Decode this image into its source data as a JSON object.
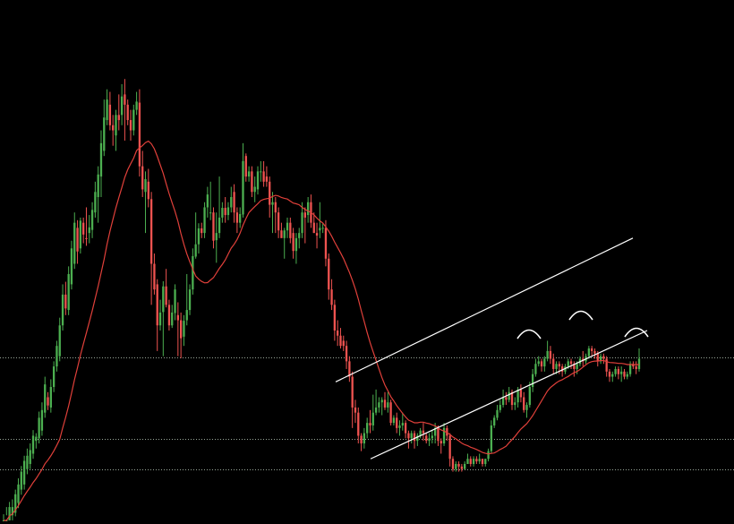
{
  "chart_data": {
    "type": "candlestick",
    "ylim": [
      0,
      100
    ],
    "colors": {
      "background": "#000000",
      "bull": "#4caf50",
      "bear": "#ef5350",
      "moving_average": "#e0403a",
      "channel": "#ffffff",
      "levels": "#9aa89a"
    },
    "horizontal_levels": [
      31.8,
      15.8,
      10.0
    ],
    "candles": [
      [
        0.0,
        0.0,
        0.0,
        1.2
      ],
      [
        0.0,
        0.0,
        1.0,
        2.6
      ],
      [
        0.0,
        2.6,
        0.0,
        3.6
      ],
      [
        1.0,
        2.6,
        0.0,
        4.1
      ],
      [
        1.5,
        5.1,
        0.8,
        6.0
      ],
      [
        3.4,
        7.0,
        2.4,
        8.2
      ],
      [
        6.0,
        9.5,
        5.0,
        10.6
      ],
      [
        7.0,
        11.6,
        6.0,
        12.6
      ],
      [
        10.0,
        12.6,
        9.0,
        14.0
      ],
      [
        11.0,
        13.7,
        10.0,
        15.0
      ],
      [
        13.0,
        16.5,
        12.0,
        17.6
      ],
      [
        15.5,
        16.3,
        14.0,
        17.0
      ],
      [
        16.0,
        20.0,
        15.0,
        21.2
      ],
      [
        17.5,
        21.5,
        16.5,
        23.0
      ],
      [
        21.0,
        26.5,
        20.0,
        28.0
      ],
      [
        24.0,
        22.4,
        21.5,
        25.0
      ],
      [
        22.0,
        26.0,
        21.0,
        27.5
      ],
      [
        26.0,
        30.0,
        25.0,
        31.0
      ],
      [
        30.0,
        34.0,
        29.0,
        35.0
      ],
      [
        32.0,
        38.0,
        31.0,
        39.5
      ],
      [
        38.0,
        44.0,
        37.0,
        46.0
      ],
      [
        44.0,
        41.3,
        40.0,
        46.5
      ],
      [
        41.0,
        48.0,
        40.0,
        49.5
      ],
      [
        46.0,
        53.0,
        45.0,
        54.5
      ],
      [
        50.0,
        58.0,
        49.0,
        60.0
      ],
      [
        57.0,
        52.4,
        50.0,
        58.5
      ],
      [
        53.0,
        58.4,
        52.0,
        59.0
      ],
      [
        58.0,
        55.7,
        54.0,
        59.0
      ],
      [
        55.0,
        54.8,
        53.5,
        61.0
      ],
      [
        56.0,
        57.1,
        54.0,
        59.5
      ],
      [
        56.6,
        60.5,
        55.0,
        62.0
      ],
      [
        60.0,
        64.0,
        59.0,
        66.0
      ],
      [
        63.0,
        67.4,
        58.0,
        69.0
      ],
      [
        67.0,
        73.5,
        63.0,
        76.0
      ],
      [
        72.0,
        78.5,
        71.0,
        82.0
      ],
      [
        78.0,
        82.0,
        77.0,
        84.0
      ],
      [
        81.0,
        77.0,
        76.0,
        83.5
      ],
      [
        77.0,
        76.0,
        73.0,
        79.0
      ],
      [
        75.0,
        79.0,
        72.0,
        80.0
      ],
      [
        79.0,
        78.0,
        76.0,
        83.0
      ],
      [
        79.0,
        82.6,
        77.0,
        85.0
      ],
      [
        83.0,
        81.0,
        74.0,
        86.0
      ],
      [
        81.0,
        78.0,
        77.0,
        82.0
      ],
      [
        78.0,
        76.0,
        74.0,
        80.0
      ],
      [
        76.0,
        80.0,
        75.0,
        81.0
      ],
      [
        80.0,
        81.6,
        79.0,
        83.5
      ],
      [
        81.4,
        69.0,
        67.0,
        84.0
      ],
      [
        69.0,
        64.5,
        63.0,
        72.0
      ],
      [
        64.0,
        66.5,
        56.0,
        68.0
      ],
      [
        66.0,
        62.6,
        61.0,
        68.5
      ],
      [
        62.6,
        50.0,
        42.0,
        64.0
      ],
      [
        50.0,
        45.0,
        44.0,
        52.0
      ],
      [
        46.0,
        38.0,
        33.0,
        47.0
      ],
      [
        38.0,
        40.5,
        37.0,
        43.0
      ],
      [
        40.6,
        45.6,
        32.0,
        46.6
      ],
      [
        45.6,
        42.0,
        41.5,
        49.0
      ],
      [
        42.0,
        38.0,
        37.0,
        43.0
      ],
      [
        38.0,
        40.5,
        37.5,
        42.0
      ],
      [
        40.4,
        45.0,
        39.0,
        46.0
      ],
      [
        40.0,
        39.0,
        32.0,
        42.5
      ],
      [
        39.0,
        35.5,
        31.6,
        40.5
      ],
      [
        35.8,
        38.9,
        34.0,
        40.0
      ],
      [
        39.0,
        41.0,
        38.0,
        48.0
      ],
      [
        41.0,
        45.0,
        40.0,
        46.0
      ],
      [
        45.0,
        51.5,
        44.0,
        53.0
      ],
      [
        51.4,
        53.8,
        51.0,
        60.0
      ],
      [
        53.8,
        56.9,
        52.0,
        57.9
      ],
      [
        56.9,
        56.0,
        55.0,
        58.0
      ],
      [
        56.0,
        61.0,
        55.0,
        62.0
      ],
      [
        61.0,
        63.5,
        59.0,
        65.0
      ],
      [
        60.0,
        60.0,
        58.5,
        66.0
      ],
      [
        60.0,
        54.5,
        53.0,
        61.0
      ],
      [
        54.6,
        56.0,
        50.2,
        60.0
      ],
      [
        56.0,
        59.0,
        55.0,
        67.0
      ],
      [
        59.0,
        60.9,
        58.0,
        62.0
      ],
      [
        60.9,
        59.5,
        58.0,
        63.0
      ],
      [
        59.5,
        61.0,
        58.5,
        62.0
      ],
      [
        61.0,
        63.0,
        60.0,
        65.0
      ],
      [
        64.0,
        60.0,
        58.0,
        65.5
      ],
      [
        60.0,
        58.0,
        56.0,
        61.0
      ],
      [
        58.0,
        59.7,
        57.0,
        61.0
      ],
      [
        59.6,
        70.0,
        59.0,
        73.5
      ],
      [
        71.0,
        67.0,
        66.0,
        71.5
      ],
      [
        67.0,
        68.0,
        66.0,
        69.0
      ],
      [
        68.0,
        64.0,
        63.0,
        69.0
      ],
      [
        64.0,
        65.0,
        62.0,
        67.0
      ],
      [
        64.5,
        68.0,
        63.5,
        69.0
      ],
      [
        68.0,
        68.0,
        66.0,
        70.0
      ],
      [
        68.0,
        66.0,
        65.0,
        70.0
      ],
      [
        67.0,
        66.0,
        65.0,
        69.0
      ],
      [
        66.0,
        61.5,
        59.0,
        67.0
      ],
      [
        61.5,
        62.0,
        56.0,
        64.0
      ],
      [
        62.0,
        60.0,
        56.0,
        63.0
      ],
      [
        60.0,
        56.5,
        55.0,
        61.0
      ],
      [
        56.5,
        55.0,
        55.5,
        58.0
      ],
      [
        55.0,
        56.5,
        51.0,
        57.0
      ],
      [
        56.5,
        58.0,
        55.0,
        59.0
      ],
      [
        58.0,
        55.0,
        54.0,
        59.0
      ],
      [
        56.0,
        52.5,
        51.0,
        57.0
      ],
      [
        52.5,
        55.0,
        50.0,
        56.0
      ],
      [
        55.0,
        56.0,
        53.0,
        57.0
      ],
      [
        56.0,
        60.0,
        55.0,
        62.0
      ],
      [
        60.0,
        59.0,
        54.0,
        61.0
      ],
      [
        59.5,
        62.0,
        58.0,
        63.0
      ],
      [
        62.0,
        58.0,
        57.0,
        63.5
      ],
      [
        58.0,
        56.0,
        56.0,
        60.0
      ],
      [
        56.0,
        55.5,
        53.0,
        58.0
      ],
      [
        56.5,
        57.0,
        55.0,
        62.0
      ],
      [
        57.0,
        57.0,
        56.0,
        58.0
      ],
      [
        57.0,
        51.0,
        49.5,
        58.5
      ],
      [
        51.0,
        45.0,
        43.0,
        52.0
      ],
      [
        45.0,
        42.0,
        41.0,
        47.0
      ],
      [
        42.0,
        37.0,
        35.0,
        43.0
      ],
      [
        37.0,
        36.0,
        34.0,
        39.0
      ],
      [
        36.0,
        34.0,
        33.5,
        37.5
      ],
      [
        35.0,
        34.0,
        33.0,
        36.0
      ],
      [
        34.0,
        31.0,
        29.5,
        35.0
      ],
      [
        31.0,
        28.0,
        27.0,
        32.0
      ],
      [
        28.0,
        22.0,
        18.0,
        29.0
      ],
      [
        22.0,
        21.0,
        19.0,
        23.5
      ],
      [
        21.0,
        16.5,
        15.0,
        22.0
      ],
      [
        16.5,
        15.0,
        13.5,
        17.0
      ],
      [
        15.0,
        17.0,
        14.0,
        18.0
      ],
      [
        17.0,
        19.0,
        16.0,
        20.0
      ],
      [
        19.0,
        18.5,
        17.0,
        21.5
      ],
      [
        18.5,
        21.0,
        17.5,
        24.5
      ],
      [
        21.0,
        22.0,
        20.5,
        25.5
      ],
      [
        22.0,
        23.0,
        21.0,
        24.0
      ],
      [
        23.0,
        23.5,
        20.5,
        24.0
      ],
      [
        23.5,
        22.0,
        21.5,
        25.0
      ],
      [
        22.0,
        23.0,
        21.0,
        25.0
      ],
      [
        23.0,
        19.0,
        18.5,
        23.5
      ],
      [
        19.0,
        20.0,
        18.5,
        20.5
      ],
      [
        20.0,
        18.0,
        17.0,
        21.0
      ],
      [
        18.0,
        18.5,
        16.5,
        19.5
      ],
      [
        18.5,
        19.0,
        17.5,
        21.0
      ],
      [
        19.0,
        17.0,
        16.0,
        19.5
      ],
      [
        17.0,
        16.0,
        14.0,
        17.5
      ],
      [
        16.0,
        17.0,
        15.0,
        17.5
      ],
      [
        17.0,
        15.5,
        14.0,
        17.5
      ],
      [
        15.5,
        16.5,
        14.5,
        17.0
      ],
      [
        16.5,
        17.5,
        16.0,
        18.0
      ],
      [
        17.5,
        17.0,
        15.5,
        19.0
      ],
      [
        16.5,
        15.5,
        15.0,
        17.0
      ],
      [
        15.5,
        16.0,
        14.5,
        17.0
      ],
      [
        16.0,
        16.5,
        15.0,
        17.5
      ],
      [
        16.5,
        18.0,
        15.0,
        19.0
      ],
      [
        18.0,
        15.5,
        14.5,
        18.5
      ],
      [
        15.5,
        15.0,
        13.0,
        16.0
      ],
      [
        15.0,
        18.0,
        14.5,
        19.0
      ],
      [
        18.0,
        16.5,
        15.5,
        18.5
      ],
      [
        16.5,
        12.0,
        10.5,
        17.0
      ],
      [
        12.0,
        10.0,
        9.5,
        12.5
      ],
      [
        10.0,
        11.0,
        9.5,
        11.5
      ],
      [
        11.0,
        10.5,
        9.5,
        11.5
      ],
      [
        10.5,
        10.0,
        9.5,
        11.0
      ],
      [
        10.0,
        11.0,
        10.0,
        11.5
      ],
      [
        11.0,
        12.0,
        11.0,
        13.0
      ],
      [
        12.0,
        11.0,
        10.5,
        12.5
      ],
      [
        11.0,
        12.0,
        10.5,
        12.5
      ],
      [
        12.0,
        11.5,
        11.0,
        12.5
      ],
      [
        11.5,
        12.0,
        11.0,
        13.0
      ],
      [
        12.0,
        11.0,
        10.5,
        12.0
      ],
      [
        11.0,
        12.0,
        10.5,
        12.0
      ],
      [
        12.0,
        13.5,
        11.5,
        14.0
      ],
      [
        13.5,
        18.5,
        13.0,
        19.5
      ],
      [
        18.5,
        20.0,
        18.0,
        20.5
      ],
      [
        20.0,
        21.5,
        19.5,
        22.5
      ],
      [
        21.5,
        22.5,
        21.0,
        23.5
      ],
      [
        22.5,
        24.0,
        22.0,
        25.5
      ],
      [
        24.0,
        23.5,
        22.5,
        25.0
      ],
      [
        23.5,
        25.0,
        23.0,
        26.0
      ],
      [
        25.0,
        22.5,
        21.5,
        25.5
      ],
      [
        22.5,
        23.0,
        21.5,
        24.0
      ],
      [
        23.0,
        25.5,
        22.0,
        26.0
      ],
      [
        25.5,
        24.0,
        23.0,
        26.5
      ],
      [
        24.0,
        21.5,
        21.0,
        25.0
      ],
      [
        21.5,
        22.5,
        20.0,
        23.0
      ],
      [
        22.5,
        26.0,
        22.0,
        27.0
      ],
      [
        26.0,
        28.5,
        25.0,
        29.5
      ],
      [
        28.5,
        30.5,
        28.0,
        31.5
      ],
      [
        30.5,
        31.0,
        30.0,
        32.0
      ],
      [
        31.0,
        30.0,
        29.0,
        31.5
      ],
      [
        30.0,
        31.5,
        29.0,
        32.0
      ],
      [
        31.5,
        33.0,
        31.0,
        35.0
      ],
      [
        33.0,
        31.5,
        30.5,
        34.0
      ],
      [
        31.5,
        29.5,
        28.5,
        32.5
      ],
      [
        29.5,
        30.5,
        28.5,
        31.0
      ],
      [
        30.5,
        30.0,
        28.5,
        31.0
      ],
      [
        30.0,
        29.0,
        28.0,
        30.5
      ],
      [
        29.0,
        30.0,
        28.5,
        30.5
      ],
      [
        30.0,
        31.0,
        29.5,
        31.5
      ],
      [
        31.0,
        30.5,
        29.5,
        31.5
      ],
      [
        30.5,
        29.5,
        28.0,
        31.0
      ],
      [
        29.5,
        30.5,
        28.5,
        31.0
      ],
      [
        30.5,
        31.5,
        30.0,
        32.0
      ],
      [
        31.5,
        31.0,
        30.0,
        33.0
      ],
      [
        31.0,
        32.0,
        30.5,
        32.5
      ],
      [
        32.0,
        33.5,
        31.5,
        34.0
      ],
      [
        33.5,
        33.0,
        32.0,
        34.0
      ],
      [
        33.0,
        32.5,
        31.5,
        33.5
      ],
      [
        32.5,
        31.0,
        30.0,
        33.0
      ],
      [
        31.0,
        32.0,
        30.5,
        32.5
      ],
      [
        32.0,
        31.5,
        30.5,
        32.5
      ],
      [
        31.5,
        29.0,
        28.0,
        32.0
      ],
      [
        29.0,
        28.0,
        27.0,
        29.5
      ],
      [
        28.0,
        28.5,
        27.0,
        29.0
      ],
      [
        28.5,
        29.5,
        28.0,
        30.0
      ],
      [
        29.5,
        28.5,
        27.5,
        30.0
      ],
      [
        28.5,
        29.0,
        27.0,
        30.0
      ],
      [
        29.0,
        28.0,
        27.5,
        29.5
      ],
      [
        28.0,
        28.5,
        27.5,
        29.0
      ],
      [
        28.5,
        30.5,
        28.0,
        31.0
      ],
      [
        30.5,
        30.0,
        29.5,
        31.0
      ],
      [
        30.0,
        29.5,
        28.5,
        31.0
      ],
      [
        29.5,
        31.5,
        29.0,
        33.5
      ]
    ],
    "moving_average_period": 20,
    "channel": {
      "upper": [
        [
          0.155,
          27.0
        ],
        [
          0.97,
          55.0
        ]
      ],
      "lower": [
        [
          0.17,
          12.0
        ],
        [
          0.985,
          37.0
        ]
      ]
    },
    "arc_markers_count": 3
  }
}
